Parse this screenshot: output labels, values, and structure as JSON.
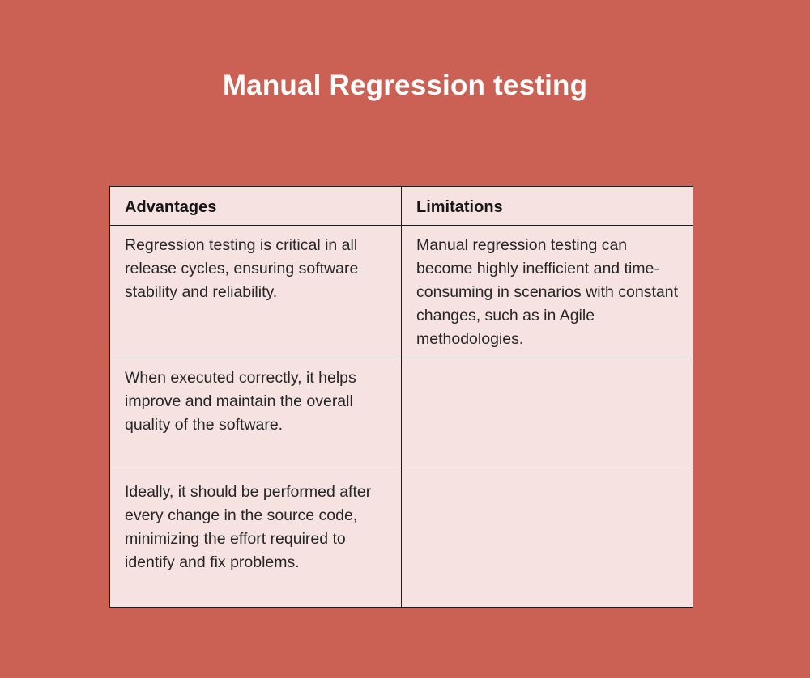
{
  "title": "Manual Regression testing",
  "colors": {
    "background": "#CB6154",
    "table_fill": "#F6E2E0",
    "border": "#1C1C1C",
    "body_text": "#262626",
    "header_text": "#161616",
    "title_text": "#FFFFFF"
  },
  "table": {
    "headers": [
      "Advantages",
      "Limitations"
    ],
    "rows": [
      [
        "Regression testing is critical in all release cycles, ensuring software stability and reliability.",
        "Manual regression testing can become highly inefficient and time-consuming in scenarios with constant changes, such as in Agile methodologies."
      ],
      [
        "When executed correctly, it helps improve and maintain the overall quality of the software.",
        ""
      ],
      [
        "Ideally, it should be performed after every change in the source code, minimizing the effort required to identify and fix problems.",
        ""
      ]
    ]
  }
}
